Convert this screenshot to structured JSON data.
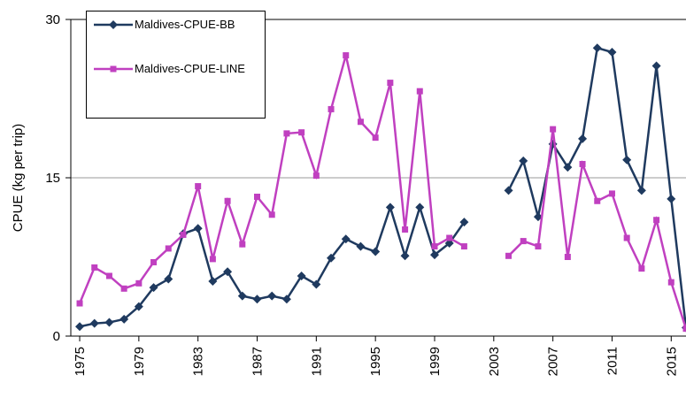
{
  "chart_data": {
    "type": "line",
    "y_label": "CPUE (kg per trip)",
    "x": [
      1975,
      1976,
      1977,
      1978,
      1979,
      1980,
      1981,
      1982,
      1983,
      1984,
      1985,
      1986,
      1987,
      1988,
      1989,
      1990,
      1991,
      1992,
      1993,
      1994,
      1995,
      1996,
      1997,
      1998,
      1999,
      2000,
      2001,
      2002,
      2003,
      2004,
      2005,
      2006,
      2007,
      2008,
      2009,
      2010,
      2011,
      2012,
      2013,
      2014,
      2015,
      2016
    ],
    "series": [
      {
        "name": "Maldives-CPUE-BB",
        "color": "#1f3a5f",
        "marker": "diamond",
        "values": [
          0.9,
          1.2,
          1.3,
          1.6,
          2.8,
          4.6,
          5.4,
          9.7,
          10.2,
          5.2,
          6.1,
          3.8,
          3.5,
          3.8,
          3.5,
          5.7,
          4.9,
          7.4,
          9.2,
          8.5,
          8.0,
          12.2,
          7.6,
          12.2,
          7.7,
          8.8,
          10.8,
          null,
          null,
          13.8,
          16.6,
          11.3,
          18.2,
          16.0,
          18.7,
          27.3,
          26.9,
          16.7,
          13.8,
          25.6,
          13.0,
          0.8
        ]
      },
      {
        "name": "Maldives-CPUE-LINE",
        "color": "#c040c0",
        "marker": "square",
        "values": [
          3.1,
          6.5,
          5.7,
          4.5,
          5.0,
          7.0,
          8.3,
          9.6,
          14.2,
          7.3,
          12.8,
          8.7,
          13.2,
          11.5,
          19.2,
          19.3,
          15.2,
          21.5,
          26.6,
          20.3,
          18.8,
          24.0,
          10.1,
          23.2,
          8.5,
          9.3,
          8.5,
          null,
          null,
          7.6,
          9.0,
          8.5,
          19.6,
          7.5,
          16.3,
          12.8,
          13.5,
          9.3,
          6.4,
          11.0,
          5.1,
          0.7
        ]
      }
    ],
    "xlim": [
      1974.4,
      2016.0
    ],
    "xticks": [
      1975,
      1979,
      1983,
      1987,
      1991,
      1995,
      1999,
      2003,
      2007,
      2011,
      2015
    ],
    "ylim": [
      0,
      30
    ],
    "yticks": [
      0,
      15,
      30
    ],
    "grid": true
  }
}
